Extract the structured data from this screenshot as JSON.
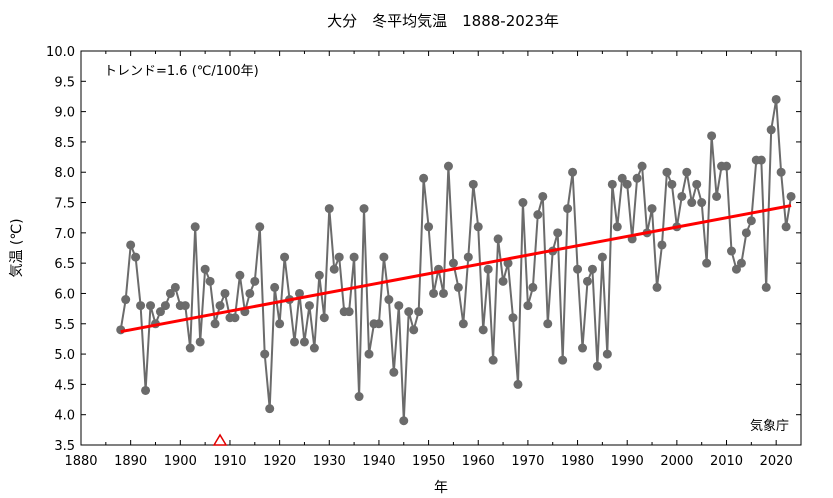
{
  "chart_data": {
    "type": "line",
    "title": "大分　冬平均気温　1888-2023年",
    "xlabel": "年",
    "ylabel": "気温 (℃)",
    "xlim": [
      1880,
      2025
    ],
    "ylim": [
      3.5,
      10.0
    ],
    "x_ticks": [
      "1880",
      "1890",
      "1900",
      "1910",
      "1920",
      "1930",
      "1940",
      "1950",
      "1960",
      "1970",
      "1980",
      "1990",
      "2000",
      "2010",
      "2020"
    ],
    "y_ticks": [
      "3.5",
      "4.0",
      "4.5",
      "5.0",
      "5.5",
      "6.0",
      "6.5",
      "7.0",
      "7.5",
      "8.0",
      "8.5",
      "9.0",
      "9.5",
      "10.0"
    ],
    "trend_label": "トレンド=1.6 (℃/100年)",
    "source_label": "気象庁",
    "grid": false,
    "colors": {
      "series": "#6b6b6b",
      "trend": "#ff0000",
      "marker_station_move": "#e00000"
    },
    "series": [
      {
        "x": [
          1888,
          1889,
          1890,
          1891,
          1892,
          1893,
          1894,
          1895,
          1896,
          1897,
          1898,
          1899,
          1900,
          1901,
          1902,
          1903,
          1904,
          1905,
          1906,
          1907,
          1908,
          1909,
          1910,
          1911,
          1912,
          1913,
          1914,
          1915,
          1916,
          1917,
          1918,
          1919,
          1920,
          1921,
          1922,
          1923,
          1924,
          1925,
          1926,
          1927,
          1928,
          1929,
          1930,
          1931,
          1932,
          1933,
          1934,
          1935,
          1936,
          1937,
          1938,
          1939,
          1940,
          1941,
          1942,
          1943,
          1944,
          1945,
          1946,
          1947,
          1948,
          1949,
          1950,
          1951,
          1952,
          1953,
          1954,
          1955,
          1956,
          1957,
          1958,
          1959,
          1960,
          1961,
          1962,
          1963,
          1964,
          1965,
          1966,
          1967,
          1968,
          1969,
          1970,
          1971,
          1972,
          1973,
          1974,
          1975,
          1976,
          1977,
          1978,
          1979,
          1980,
          1981,
          1982,
          1983,
          1984,
          1985,
          1986,
          1987,
          1988,
          1989,
          1990,
          1991,
          1992,
          1993,
          1994,
          1995,
          1996,
          1997,
          1998,
          1999,
          2000,
          2001,
          2002,
          2003,
          2004,
          2005,
          2006,
          2007,
          2008,
          2009,
          2010,
          2011,
          2012,
          2013,
          2014,
          2015,
          2016,
          2017,
          2018,
          2019,
          2020,
          2021,
          2022,
          2023
        ],
        "values": [
          5.4,
          5.9,
          6.8,
          6.6,
          5.8,
          4.4,
          5.8,
          5.5,
          5.7,
          5.8,
          6.0,
          6.1,
          5.8,
          5.8,
          5.1,
          7.1,
          5.2,
          6.4,
          6.2,
          5.5,
          5.8,
          6.0,
          5.6,
          5.6,
          6.3,
          5.7,
          6.0,
          6.2,
          7.1,
          5.0,
          4.1,
          6.1,
          5.5,
          6.6,
          5.9,
          5.2,
          6.0,
          5.2,
          5.8,
          5.1,
          6.3,
          5.6,
          7.4,
          6.4,
          6.6,
          5.7,
          5.7,
          6.6,
          4.3,
          7.4,
          5.0,
          5.5,
          5.5,
          6.6,
          5.9,
          4.7,
          5.8,
          3.9,
          5.7,
          5.4,
          5.7,
          7.9,
          7.1,
          6.0,
          6.4,
          6.0,
          8.1,
          6.5,
          6.1,
          5.5,
          6.6,
          7.8,
          7.1,
          5.4,
          6.4,
          4.9,
          6.9,
          6.2,
          6.5,
          5.6,
          4.5,
          7.5,
          5.8,
          6.1,
          7.3,
          7.6,
          5.5,
          6.7,
          7.0,
          4.9,
          7.4,
          8.0,
          6.4,
          5.1,
          6.2,
          6.4,
          4.8,
          6.6,
          5.0,
          7.8,
          7.1,
          7.9,
          7.8,
          6.9,
          7.9,
          8.1,
          7.0,
          7.4,
          6.1,
          6.8,
          8.0,
          7.8,
          7.1,
          7.6,
          8.0,
          7.5,
          7.8,
          7.5,
          6.5,
          8.6,
          7.6,
          8.1,
          8.1,
          6.7,
          6.4,
          6.5,
          7.0,
          7.2,
          8.2,
          8.2,
          6.1,
          8.7,
          9.2,
          8.0,
          7.1,
          7.6
        ]
      }
    ],
    "trend": {
      "x": [
        1888,
        2023
      ],
      "y": [
        5.37,
        7.45
      ]
    },
    "markers": [
      {
        "x": 1908,
        "y": 3.5,
        "shape": "triangle"
      }
    ]
  }
}
